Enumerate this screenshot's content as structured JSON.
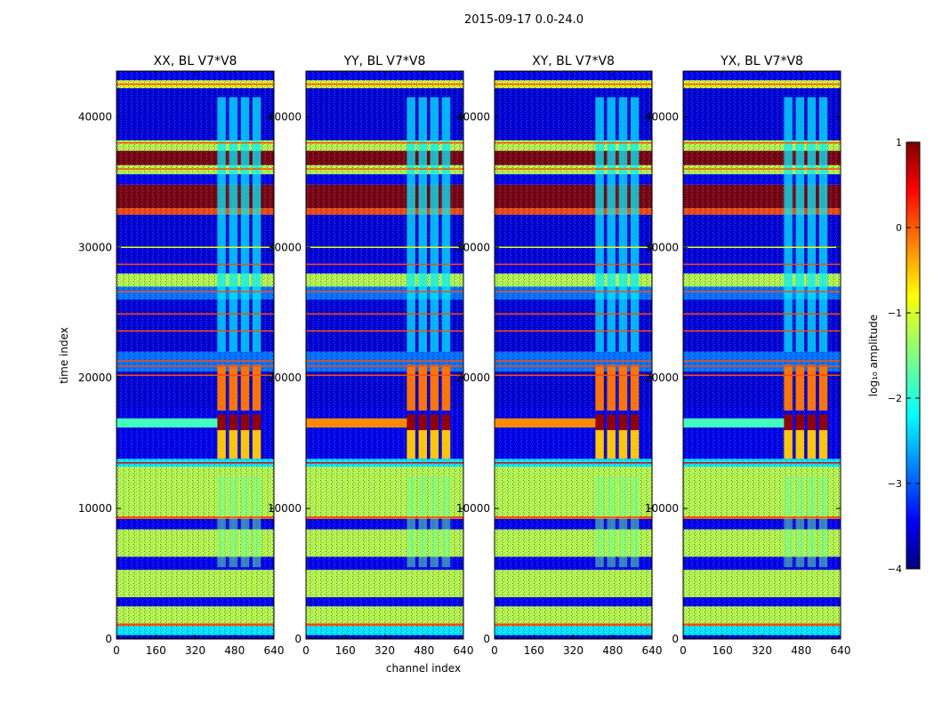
{
  "figure": {
    "suptitle": "2015-09-17 0.0-24.0"
  },
  "chart_data": {
    "type": "heatmap",
    "xlabel": "channel index",
    "ylabel": "time index",
    "xlim": [
      0,
      640
    ],
    "ylim": [
      0,
      43500
    ],
    "xticks": [
      0,
      160,
      320,
      480,
      640
    ],
    "yticks": [
      0,
      10000,
      20000,
      30000,
      40000
    ],
    "panels": [
      {
        "title": "XX, BL V7*V8",
        "pol": "XX"
      },
      {
        "title": "YY, BL V7*V8",
        "pol": "YY"
      },
      {
        "title": "XY, BL V7*V8",
        "pol": "XY"
      },
      {
        "title": "YX, BL V7*V8",
        "pol": "YX"
      }
    ],
    "rfi_columns_start": 410,
    "rfi_columns_end": 600,
    "colorbar": {
      "label": "log₁₀ amplitude",
      "range": [
        -4,
        1
      ],
      "ticks": [
        "1",
        "0",
        "−1",
        "−2",
        "−3",
        "−4"
      ],
      "colormap": "jet",
      "colors": [
        "#00007f",
        "#0000ff",
        "#007fff",
        "#00ffff",
        "#7fff7f",
        "#ffff00",
        "#ff7f00",
        "#ff0000",
        "#7f0000"
      ]
    },
    "bands": [
      {
        "t0": 0,
        "t1": 300,
        "value": -3.8
      },
      {
        "t0": 300,
        "t1": 1000,
        "value": -2.2
      },
      {
        "t0": 1000,
        "t1": 1200,
        "value": 0.0
      },
      {
        "t0": 1200,
        "t1": 2500,
        "value": -1.2
      },
      {
        "t0": 2500,
        "t1": 3200,
        "value": -3.5
      },
      {
        "t0": 3200,
        "t1": 5300,
        "value": -1.2
      },
      {
        "t0": 5300,
        "t1": 6300,
        "value": -3.5
      },
      {
        "t0": 6300,
        "t1": 8400,
        "value": -1.2
      },
      {
        "t0": 8400,
        "t1": 9200,
        "value": -3.5
      },
      {
        "t0": 9200,
        "t1": 9400,
        "value": 0.0
      },
      {
        "t0": 9400,
        "t1": 13200,
        "value": -1.2
      },
      {
        "t0": 13200,
        "t1": 13800,
        "value": -2.2
      },
      {
        "t0": 13800,
        "t1": 17600,
        "value": -3.5
      },
      {
        "t0": 17600,
        "t1": 20500,
        "value": -3.6
      },
      {
        "t0": 20500,
        "t1": 22000,
        "value": -2.8
      },
      {
        "t0": 22000,
        "t1": 26000,
        "value": -3.6
      },
      {
        "t0": 26000,
        "t1": 27000,
        "value": -2.8
      },
      {
        "t0": 27000,
        "t1": 28000,
        "value": -1.2
      },
      {
        "t0": 28000,
        "t1": 29000,
        "value": -3.5
      },
      {
        "t0": 29000,
        "t1": 32500,
        "value": -3.6
      },
      {
        "t0": 32500,
        "t1": 33000,
        "value": 0.0
      },
      {
        "t0": 33000,
        "t1": 34800,
        "value": 1.0
      },
      {
        "t0": 34800,
        "t1": 35600,
        "value": -3.5
      },
      {
        "t0": 35600,
        "t1": 36300,
        "value": -1.2
      },
      {
        "t0": 36300,
        "t1": 37400,
        "value": 1.0
      },
      {
        "t0": 37400,
        "t1": 38200,
        "value": -1.2
      },
      {
        "t0": 38200,
        "t1": 42200,
        "value": -3.6
      },
      {
        "t0": 42200,
        "t1": 42800,
        "value": -1.0
      },
      {
        "t0": 42800,
        "t1": 43500,
        "value": -3.5
      }
    ],
    "thin_lines": [
      {
        "t": 1100,
        "value": 0.0
      },
      {
        "t": 9300,
        "value": 0.0
      },
      {
        "t": 13500,
        "value": 0.5
      },
      {
        "t": 20200,
        "value": 0.0
      },
      {
        "t": 20900,
        "value": 0.0
      },
      {
        "t": 21300,
        "value": 0.0
      },
      {
        "t": 23600,
        "value": 0.0
      },
      {
        "t": 24900,
        "value": 0.0
      },
      {
        "t": 26600,
        "value": 0.0
      },
      {
        "t": 28700,
        "value": 0.0
      },
      {
        "t": 30000,
        "value": -1.0
      },
      {
        "t": 36000,
        "value": 0.0
      },
      {
        "t": 38000,
        "value": 0.0
      },
      {
        "t": 42500,
        "value": 0.0
      }
    ]
  }
}
